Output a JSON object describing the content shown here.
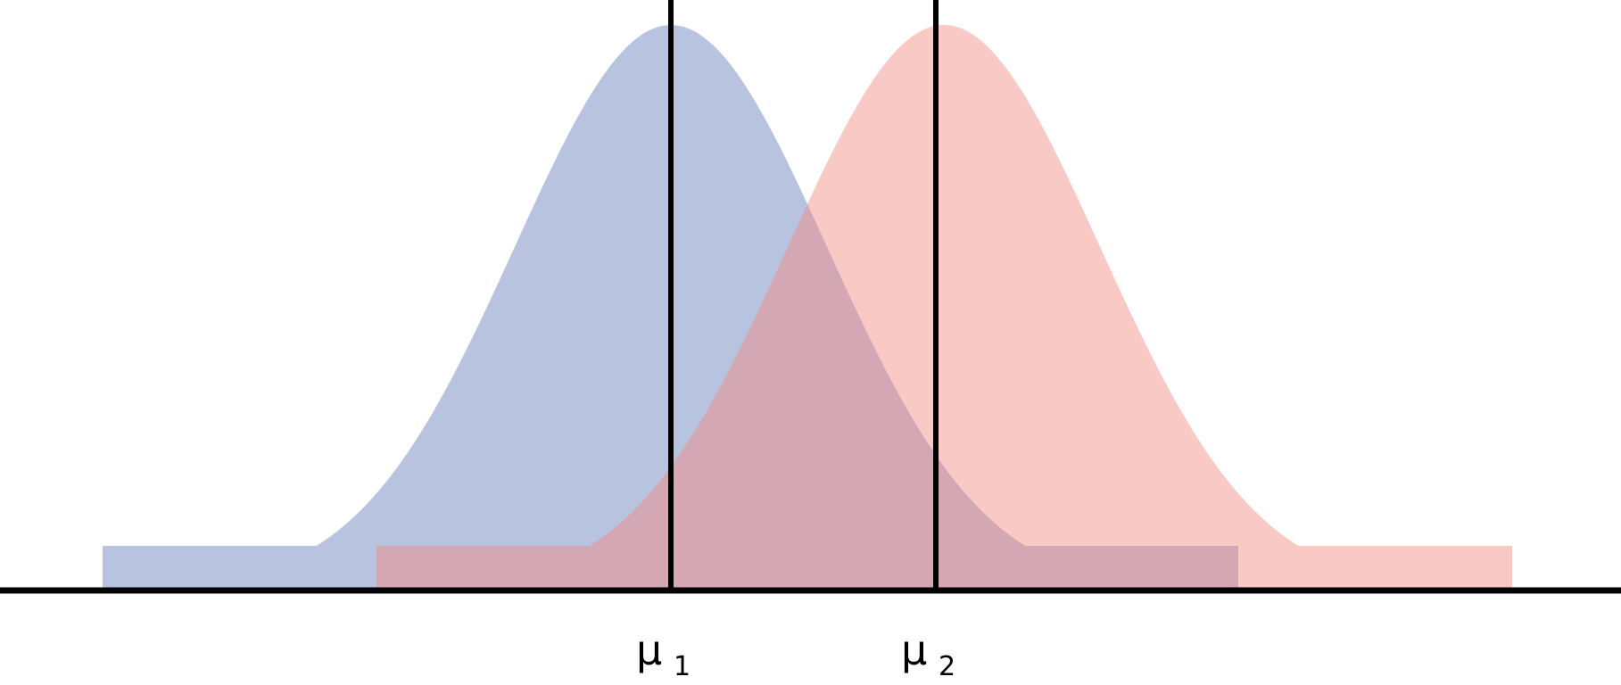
{
  "distributions": [
    {
      "id": "dist-1",
      "mean_label": "μ",
      "mean_subscript": "1",
      "fill_color": "#b7c3df"
    },
    {
      "id": "dist-2",
      "mean_label": "μ",
      "mean_subscript": "2",
      "fill_color": "#f9c9c5"
    }
  ],
  "overlap_color": "#d3a8b4",
  "axis_color": "#000000"
}
